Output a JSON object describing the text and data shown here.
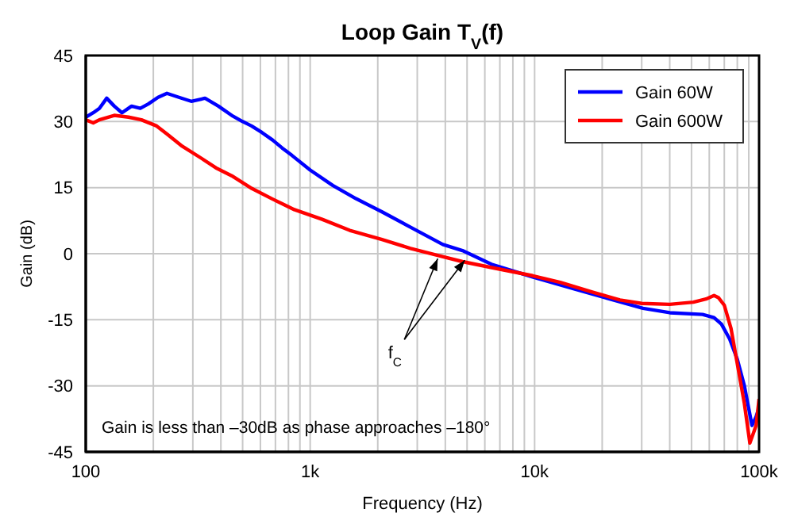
{
  "chart_data": {
    "type": "line",
    "title": "Loop Gain T$_{V}$(f)",
    "xlabel": "Frequency (Hz)",
    "ylabel": "Gain (dB)",
    "log": "x",
    "grid": true,
    "legend": "top right",
    "marker": "none",
    "line_style": "solid",
    "xlim": [
      100,
      100000
    ],
    "ylim": [
      -45,
      45
    ],
    "yticks": [
      -45,
      -30,
      -15,
      0,
      15,
      30,
      45
    ],
    "xticks": [
      {
        "value": 100,
        "label": "100"
      },
      {
        "value": 200,
        "label": null
      },
      {
        "value": 300,
        "label": null
      },
      {
        "value": 400,
        "label": null
      },
      {
        "value": 500,
        "label": null
      },
      {
        "value": 600,
        "label": null
      },
      {
        "value": 700,
        "label": null
      },
      {
        "value": 800,
        "label": null
      },
      {
        "value": 900,
        "label": null
      },
      {
        "value": 1000,
        "label": "1k"
      },
      {
        "value": 2000,
        "label": null
      },
      {
        "value": 3000,
        "label": null
      },
      {
        "value": 4000,
        "label": null
      },
      {
        "value": 5000,
        "label": null
      },
      {
        "value": 6000,
        "label": null
      },
      {
        "value": 7000,
        "label": null
      },
      {
        "value": 8000,
        "label": null
      },
      {
        "value": 9000,
        "label": null
      },
      {
        "value": 10000,
        "label": "10k"
      },
      {
        "value": 20000,
        "label": null
      },
      {
        "value": 30000,
        "label": null
      },
      {
        "value": 40000,
        "label": null
      },
      {
        "value": 50000,
        "label": null
      },
      {
        "value": 60000,
        "label": null
      },
      {
        "value": 70000,
        "label": null
      },
      {
        "value": 80000,
        "label": null
      },
      {
        "value": 90000,
        "label": null
      },
      {
        "value": 100000,
        "label": "100k"
      }
    ],
    "series": [
      {
        "name": "Gain 60W",
        "color": "#0000ff",
        "x": [
          100,
          108,
          115,
          124,
          134,
          145,
          160,
          175,
          190,
          210,
          230,
          260,
          295,
          340,
          390,
          447,
          500,
          548,
          610,
          680,
          750,
          830,
          1000,
          1260,
          1600,
          2090,
          2800,
          3900,
          4770,
          6500,
          9800,
          15000,
          20000,
          30400,
          40000,
          56000,
          63000,
          68000,
          74000,
          80000,
          86000,
          93000,
          97000,
          100000
        ],
        "values": [
          31,
          32,
          33,
          35.3,
          33.5,
          32,
          33.5,
          33,
          34,
          35.5,
          36.4,
          35.5,
          34.6,
          35.3,
          33.5,
          31.4,
          30,
          29,
          27.5,
          25.8,
          24,
          22.3,
          19,
          15.5,
          12.5,
          9.5,
          6,
          2.1,
          0.7,
          -2.5,
          -5.3,
          -8,
          -9.8,
          -12.4,
          -13.4,
          -13.8,
          -14.5,
          -16,
          -19.4,
          -24,
          -30,
          -39,
          -37,
          -35
        ]
      },
      {
        "name": "Gain 600W",
        "color": "#ff0000",
        "x": [
          100,
          108,
          115,
          134,
          155,
          177,
          207,
          230,
          269,
          329,
          380,
          447,
          550,
          680,
          850,
          1130,
          1500,
          2090,
          2800,
          3700,
          4770,
          6500,
          9800,
          13000,
          18300,
          24000,
          30000,
          40000,
          51000,
          58000,
          63000,
          66000,
          70000,
          75000,
          80000,
          86000,
          91000,
          97000,
          100000
        ],
        "values": [
          30.4,
          29.7,
          30.4,
          31.4,
          31,
          30.4,
          29,
          27.2,
          24.4,
          21.6,
          19.5,
          17.7,
          14.8,
          12.4,
          10,
          7.8,
          5.3,
          3.2,
          1.2,
          -0.4,
          -1.8,
          -3.2,
          -5,
          -6.5,
          -8.8,
          -10.5,
          -11.3,
          -11.5,
          -11,
          -10.3,
          -9.5,
          -10,
          -11.7,
          -17,
          -25,
          -34,
          -43,
          -39,
          -33
        ]
      }
    ],
    "annotations": [
      {
        "text": "f$_{C}$",
        "x": 3700,
        "y": -0.4
      },
      "Gain is less than –30dB as phase approaches –180°"
    ]
  }
}
